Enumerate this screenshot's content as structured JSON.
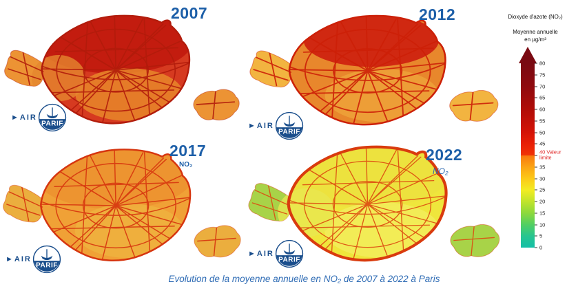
{
  "caption": "Evolution de la moyenne annuelle en NO₂ de 2007 à 2022 à Paris",
  "logo": {
    "air": "►AIR",
    "parif": "PARIF"
  },
  "maps": [
    {
      "year": "2007",
      "sub": "",
      "colors": {
        "base": "#d63a20",
        "north": "#c21a0f",
        "south": "#e8872a",
        "west": "#e5872e",
        "bois": "#ec9334",
        "road": "#b21c0c",
        "ring": "#b21c0c",
        "roadw": "1.7px",
        "ringw": "2.5px"
      }
    },
    {
      "year": "2012",
      "sub": "",
      "colors": {
        "base": "#e8872c",
        "north": "#cf2310",
        "south": "#eda23a",
        "west": "transparent",
        "bois": "#f2b440",
        "road": "#cc2008",
        "ring": "#cc2008",
        "roadw": "1.8px",
        "ringw": "2.5px"
      }
    },
    {
      "year": "2017",
      "sub": "NO₂",
      "colors": {
        "base": "#f0a136",
        "north": "#ec9430",
        "south": "#eeb13e",
        "west": "transparent",
        "bois": "#ebae3e",
        "road": "#d6350f",
        "ring": "#d6350f",
        "roadw": "1.5px",
        "ringw": "2.5px"
      }
    },
    {
      "year": "2022",
      "sub": "NO₂",
      "colors": {
        "base": "#efe63c",
        "north": "#ece23e",
        "south": "#f2ec5a",
        "west": "#e9e750",
        "bois": "#a8d348",
        "road": "#dd4a10",
        "ring": "#d93b0e",
        "roadw": "1.3px",
        "ringw": "4px"
      }
    }
  ],
  "legend": {
    "title": "Dioxyde d'azote (NO₂)",
    "subtitle": "Moyenne annuelle",
    "unit": "en µg/m³",
    "max": 80,
    "ticks": [
      80,
      75,
      70,
      65,
      60,
      55,
      50,
      45,
      40,
      35,
      30,
      25,
      20,
      15,
      10,
      5,
      0
    ],
    "limit_value": 40,
    "limit_label": "40 Valeur limite",
    "limit_color": "#e02020",
    "scale_stops": [
      {
        "value": 80,
        "color": "#7a0a12"
      },
      {
        "value": 70,
        "color": "#8f0a0e"
      },
      {
        "value": 60,
        "color": "#b00d08"
      },
      {
        "value": 50,
        "color": "#d41307"
      },
      {
        "value": 45,
        "color": "#e81f06"
      },
      {
        "value": 40.2,
        "color": "#f03206"
      },
      {
        "value": 39.8,
        "color": "#f87a0e"
      },
      {
        "value": 35,
        "color": "#fba414"
      },
      {
        "value": 30,
        "color": "#fcc918"
      },
      {
        "value": 25,
        "color": "#f3ec22"
      },
      {
        "value": 20,
        "color": "#c0e42c"
      },
      {
        "value": 15,
        "color": "#8cd93c"
      },
      {
        "value": 10,
        "color": "#52cf62"
      },
      {
        "value": 5,
        "color": "#27c590"
      },
      {
        "value": 0,
        "color": "#15bfa7"
      }
    ]
  }
}
